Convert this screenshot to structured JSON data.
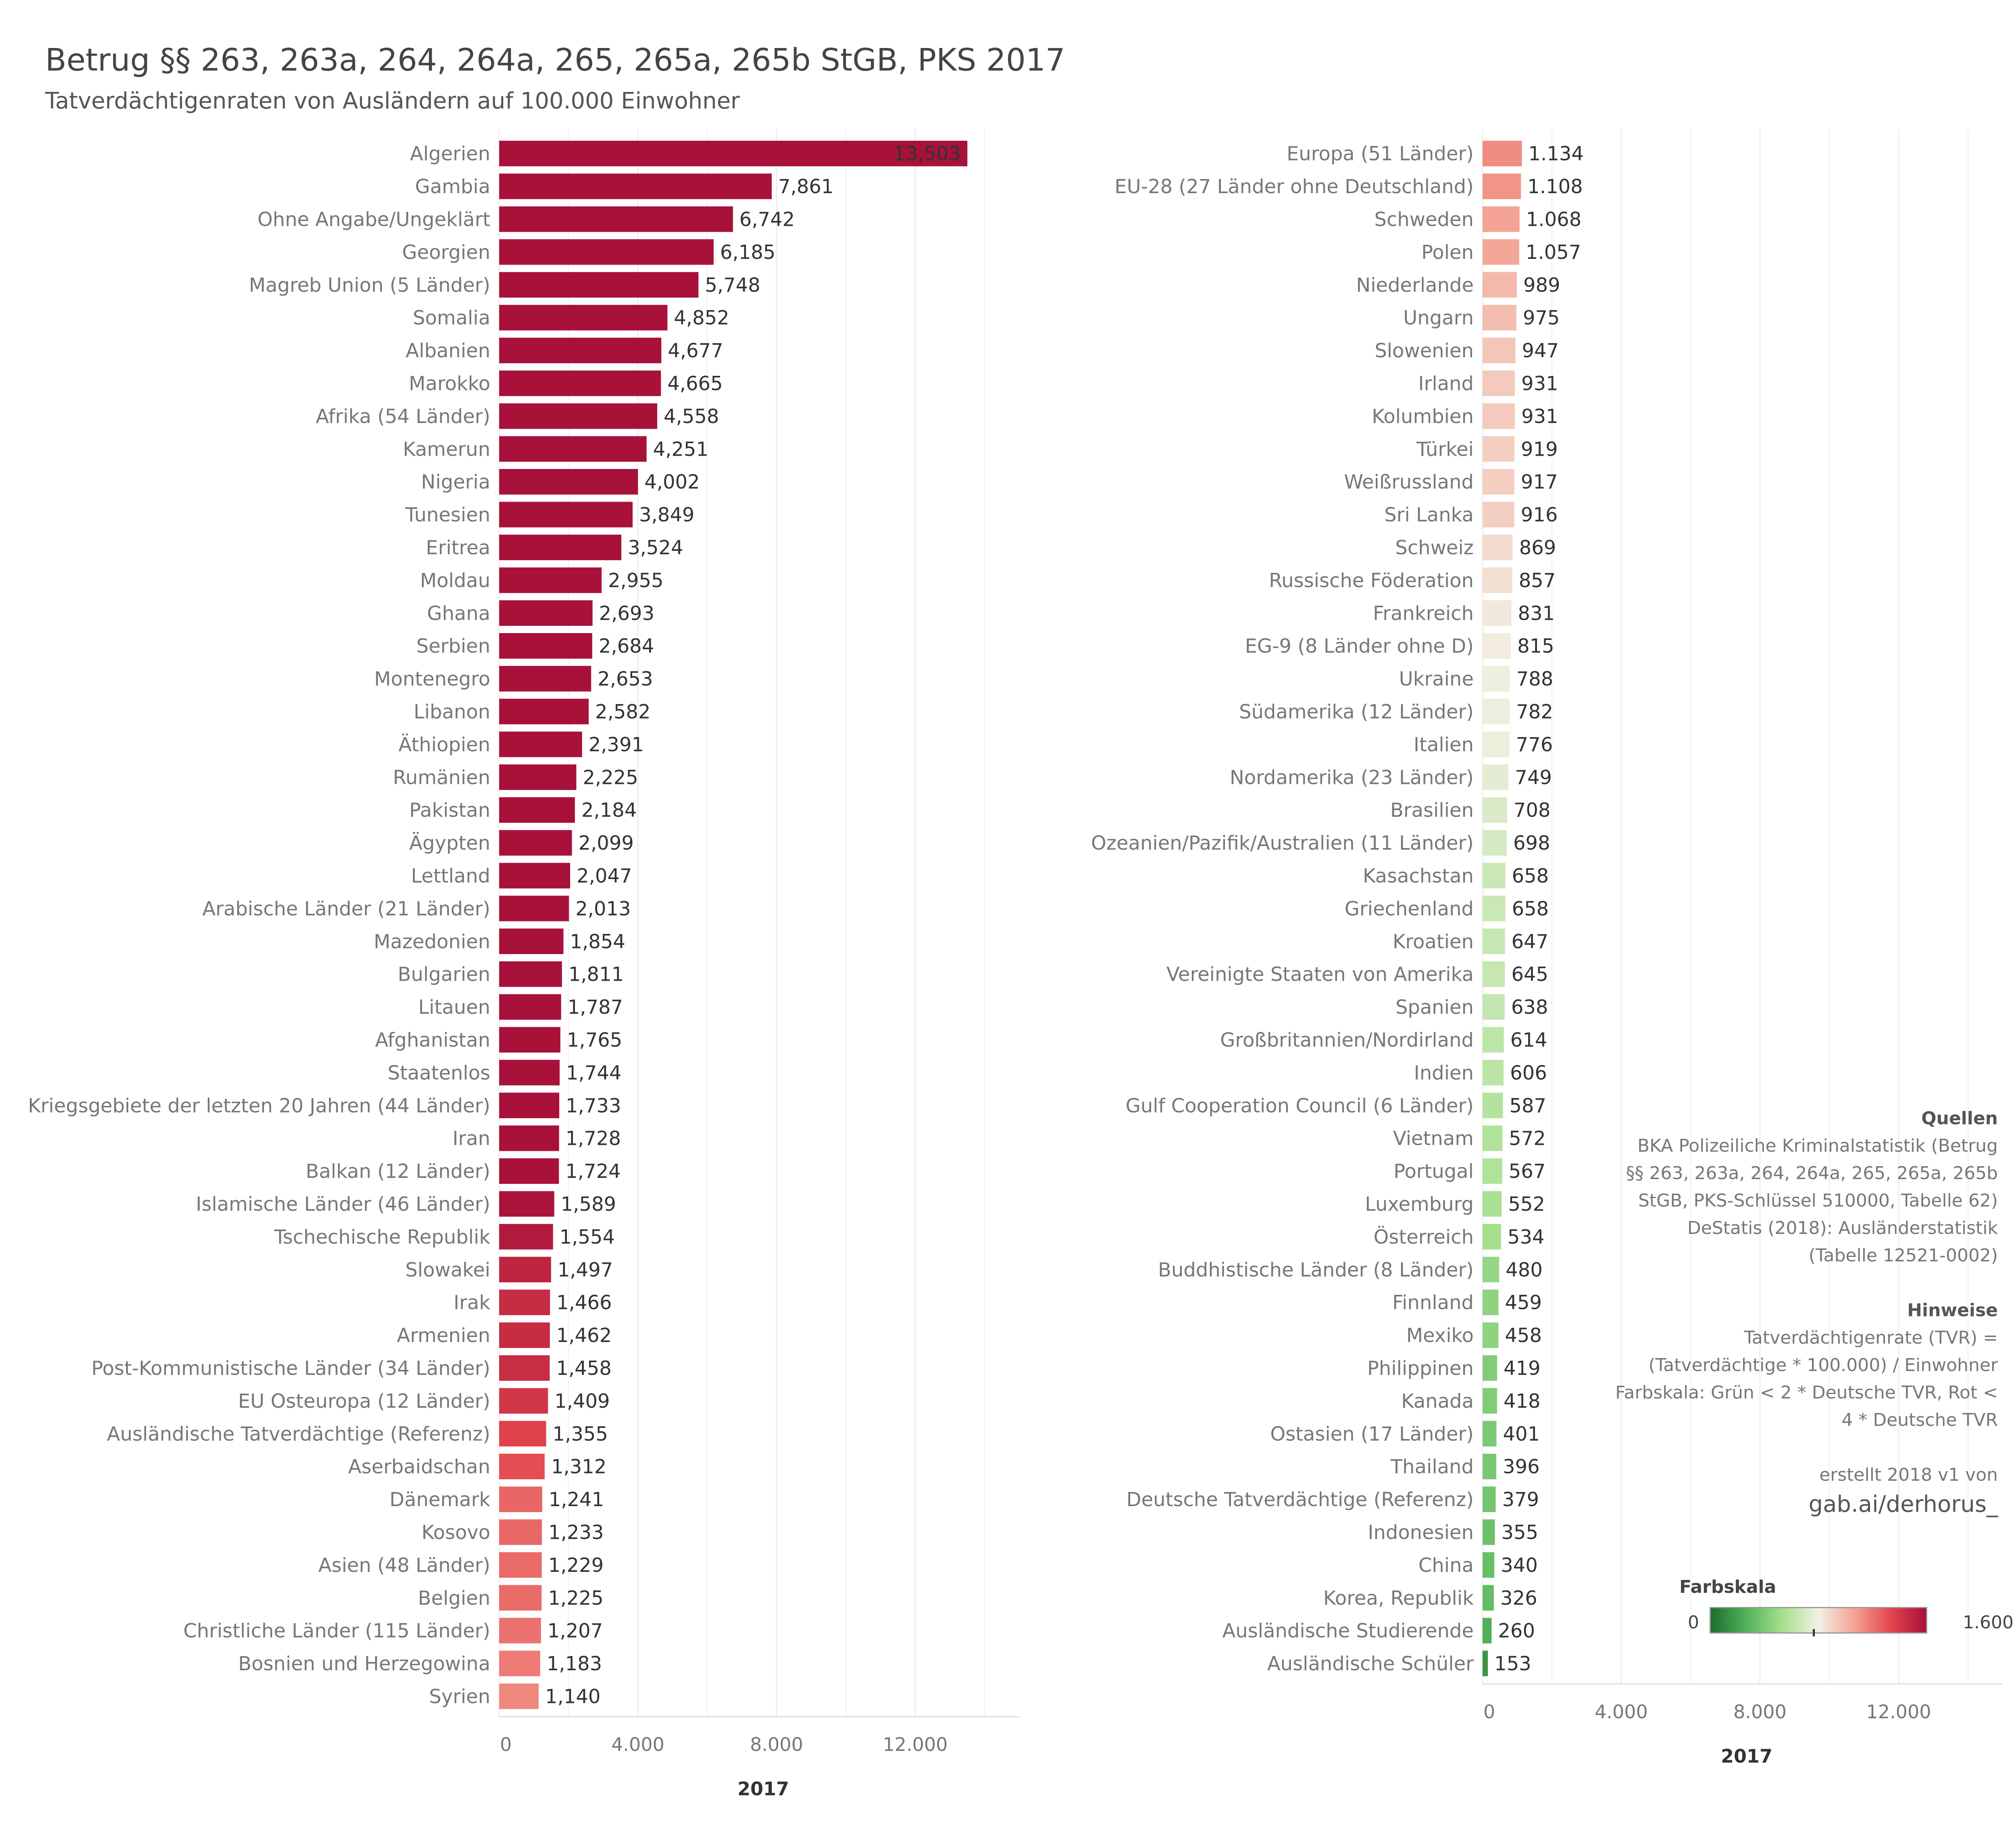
{
  "title": "Betrug §§ 263, 263a, 264, 264a, 265, 265a, 265b StGB, PKS 2017",
  "subtitle": "Tatverdächtigenraten von Ausländern auf 100.000 Einwohner",
  "chart_data": [
    {
      "type": "bar",
      "orientation": "horizontal",
      "xlabel": "2017",
      "xlim": [
        0,
        15000
      ],
      "xticks": [
        "0",
        "4.000",
        "8.000",
        "12.000"
      ],
      "tick_values": [
        0,
        4000,
        8000,
        12000
      ],
      "categories": [
        "Algerien",
        "Gambia",
        "Ohne Angabe/Ungeklärt",
        "Georgien",
        "Magreb Union (5 Länder)",
        "Somalia",
        "Albanien",
        "Marokko",
        "Afrika (54 Länder)",
        "Kamerun",
        "Nigeria",
        "Tunesien",
        "Eritrea",
        "Moldau",
        "Ghana",
        "Serbien",
        "Montenegro",
        "Libanon",
        "Äthiopien",
        "Rumänien",
        "Pakistan",
        "Ägypten",
        "Lettland",
        "Arabische Länder (21 Länder)",
        "Mazedonien",
        "Bulgarien",
        "Litauen",
        "Afghanistan",
        "Staatenlos",
        "Kriegsgebiete der letzten 20 Jahren (44 Länder)",
        "Iran",
        "Balkan (12 Länder)",
        "Islamische Länder (46 Länder)",
        "Tschechische Republik",
        "Slowakei",
        "Irak",
        "Armenien",
        "Post-Kommunistische Länder (34 Länder)",
        "EU Osteuropa (12 Länder)",
        "Ausländische Tatverdächtige (Referenz)",
        "Aserbaidschan",
        "Dänemark",
        "Kosovo",
        "Asien (48 Länder)",
        "Belgien",
        "Christliche Länder (115 Länder)",
        "Bosnien und Herzegowina",
        "Syrien"
      ],
      "values": [
        13503,
        7861,
        6742,
        6185,
        5748,
        4852,
        4677,
        4665,
        4558,
        4251,
        4002,
        3849,
        3524,
        2955,
        2693,
        2684,
        2653,
        2582,
        2391,
        2225,
        2184,
        2099,
        2047,
        2013,
        1854,
        1811,
        1787,
        1765,
        1744,
        1733,
        1728,
        1724,
        1589,
        1554,
        1497,
        1466,
        1462,
        1458,
        1409,
        1355,
        1312,
        1241,
        1233,
        1229,
        1225,
        1207,
        1183,
        1140
      ],
      "labels": [
        "13,503",
        "7,861",
        "6,742",
        "6,185",
        "5,748",
        "4,852",
        "4,677",
        "4,665",
        "4,558",
        "4,251",
        "4,002",
        "3,849",
        "3,524",
        "2,955",
        "2,693",
        "2,684",
        "2,653",
        "2,582",
        "2,391",
        "2,225",
        "2,184",
        "2,099",
        "2,047",
        "2,013",
        "1,854",
        "1,811",
        "1,787",
        "1,765",
        "1,744",
        "1,733",
        "1,728",
        "1,724",
        "1,589",
        "1,554",
        "1,497",
        "1,466",
        "1,462",
        "1,458",
        "1,409",
        "1,355",
        "1,312",
        "1,241",
        "1,233",
        "1,229",
        "1,225",
        "1,207",
        "1,183",
        "1,140"
      ]
    },
    {
      "type": "bar",
      "orientation": "horizontal",
      "xlabel": "2017",
      "xlim": [
        0,
        15000
      ],
      "xticks": [
        "0",
        "4.000",
        "8.000",
        "12.000"
      ],
      "tick_values": [
        0,
        4000,
        8000,
        12000
      ],
      "categories": [
        "Europa (51 Länder)",
        "EU-28 (27 Länder ohne Deutschland)",
        "Schweden",
        "Polen",
        "Niederlande",
        "Ungarn",
        "Slowenien",
        "Irland",
        "Kolumbien",
        "Türkei",
        "Weißrussland",
        "Sri Lanka",
        "Schweiz",
        "Russische Föderation",
        "Frankreich",
        "EG-9 (8 Länder ohne D)",
        "Ukraine",
        "Südamerika (12 Länder)",
        "Italien",
        "Nordamerika (23 Länder)",
        "Brasilien",
        "Ozeanien/Pazifik/Australien (11 Länder)",
        "Kasachstan",
        "Griechenland",
        "Kroatien",
        "Vereinigte Staaten von Amerika",
        "Spanien",
        "Großbritannien/Nordirland",
        "Indien",
        "Gulf Cooperation Council (6 Länder)",
        "Vietnam",
        "Portugal",
        "Luxemburg",
        "Österreich",
        "Buddhistische Länder (8 Länder)",
        "Finnland",
        "Mexiko",
        "Philippinen",
        "Kanada",
        "Ostasien (17 Länder)",
        "Thailand",
        "Deutsche Tatverdächtige (Referenz)",
        "Indonesien",
        "China",
        "Korea, Republik",
        "Ausländische Studierende",
        "Ausländische Schüler"
      ],
      "values": [
        1134,
        1108,
        1068,
        1057,
        989,
        975,
        947,
        931,
        931,
        919,
        917,
        916,
        869,
        857,
        831,
        815,
        788,
        782,
        776,
        749,
        708,
        698,
        658,
        658,
        647,
        645,
        638,
        614,
        606,
        587,
        572,
        567,
        552,
        534,
        480,
        459,
        458,
        419,
        418,
        401,
        396,
        379,
        355,
        340,
        326,
        260,
        153
      ],
      "labels": [
        "1.134",
        "1.108",
        "1.068",
        "1.057",
        "989",
        "975",
        "947",
        "931",
        "931",
        "919",
        "917",
        "916",
        "869",
        "857",
        "831",
        "815",
        "788",
        "782",
        "776",
        "749",
        "708",
        "698",
        "658",
        "658",
        "647",
        "645",
        "638",
        "614",
        "606",
        "587",
        "572",
        "567",
        "552",
        "534",
        "480",
        "459",
        "458",
        "419",
        "418",
        "401",
        "396",
        "379",
        "355",
        "340",
        "326",
        "260",
        "153"
      ]
    }
  ],
  "notes": {
    "sources_head": "Quellen",
    "sources_lines": [
      "BKA Polizeiliche Kriminalstatistik (Betrug",
      "§§ 263, 263a, 264, 264a, 265, 265a, 265b",
      "StGB, PKS-Schlüssel 510000, Tabelle 62)",
      "DeStatis (2018): Ausländerstatistik",
      "(Tabelle 12521-0002)"
    ],
    "hints_head": "Hinweise",
    "hints_lines": [
      "Tatverdächtigenrate (TVR) =",
      "(Tatverdächtige * 100.000) / Einwohner",
      "Farbskala: Grün < 2 * Deutsche TVR, Rot <",
      "4 * Deutsche TVR"
    ],
    "created": "erstellt 2018 v1 von",
    "handle": "gab.ai/derhorus_"
  },
  "legend": {
    "title": "Farbskala",
    "min_label": "0",
    "max_label": "1.600",
    "min_value": 0,
    "max_value": 1600,
    "midpoint_value": 758,
    "colors": [
      "#1e6e2e",
      "#52b25a",
      "#a6e08e",
      "#f2f0e4",
      "#f4a394",
      "#e3464c",
      "#a8113a"
    ]
  }
}
